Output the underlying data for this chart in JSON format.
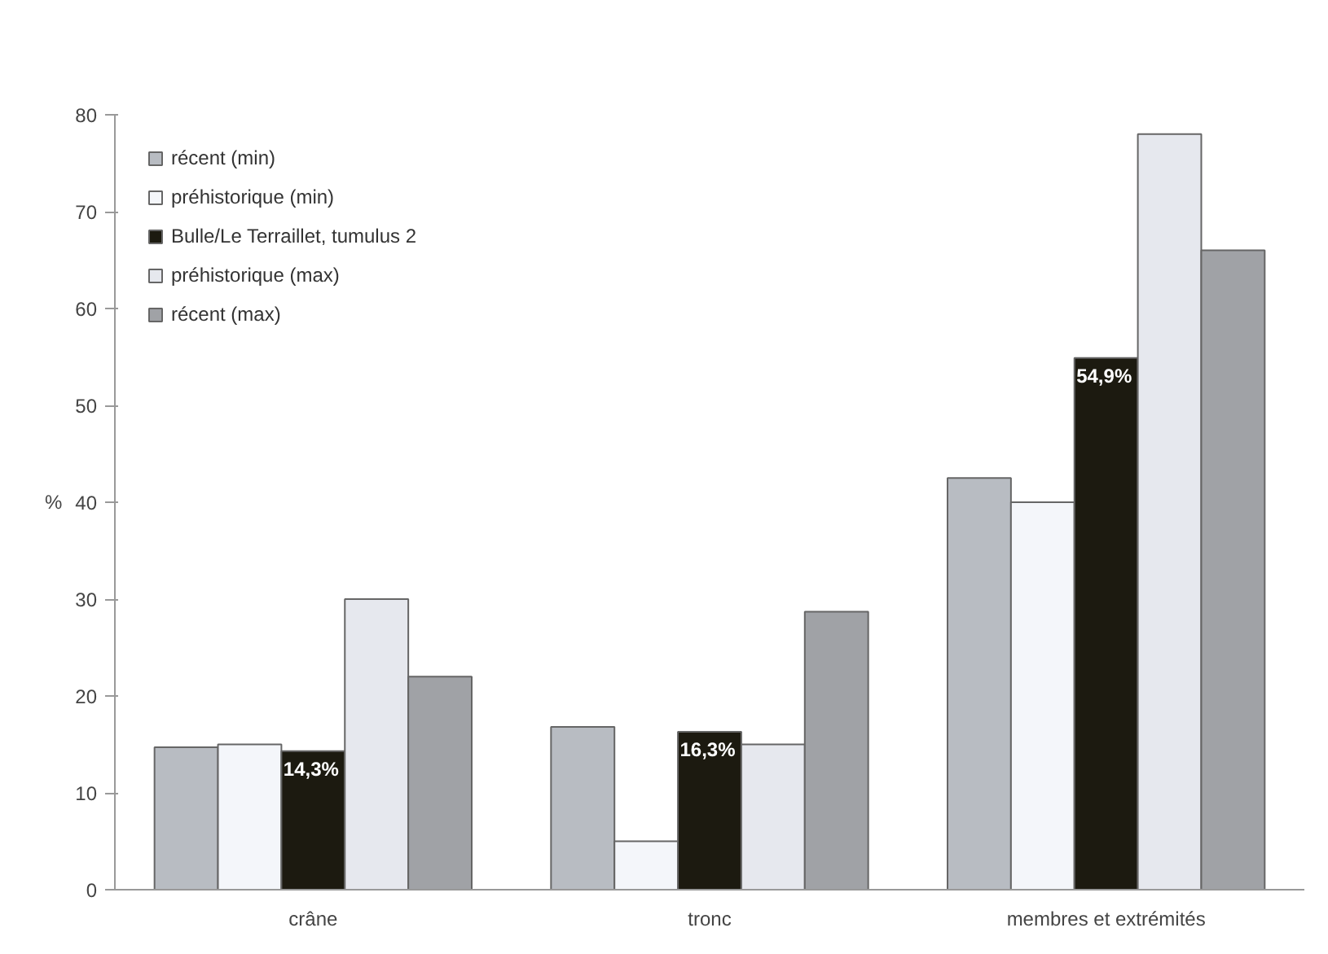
{
  "chart_data": {
    "type": "bar",
    "ylabel": "%",
    "categories": [
      "crâne",
      "tronc",
      "membres et extrémités"
    ],
    "series": [
      {
        "name": "récent (min)",
        "color": "#b8bcc2",
        "values": [
          14.7,
          16.8,
          42.5
        ]
      },
      {
        "name": "préhistorique (min)",
        "color": "#f4f6fa",
        "values": [
          15.0,
          5.0,
          40.0
        ]
      },
      {
        "name": "Bulle/Le Terraillet, tumulus 2",
        "color": "#1c1a10",
        "values": [
          14.3,
          16.3,
          54.9
        ],
        "value_labels": [
          "14,3%",
          "16,3%",
          "54,9%"
        ]
      },
      {
        "name": "préhistorique (max)",
        "color": "#e6e8ee",
        "values": [
          30.0,
          15.0,
          78.0
        ]
      },
      {
        "name": "récent (max)",
        "color": "#a0a2a6",
        "values": [
          22.0,
          28.7,
          66.0
        ]
      }
    ],
    "ylim": [
      0,
      80
    ],
    "yticks": [
      0,
      10,
      20,
      30,
      40,
      50,
      60,
      70,
      80
    ],
    "grid": false,
    "legend": "top left"
  }
}
